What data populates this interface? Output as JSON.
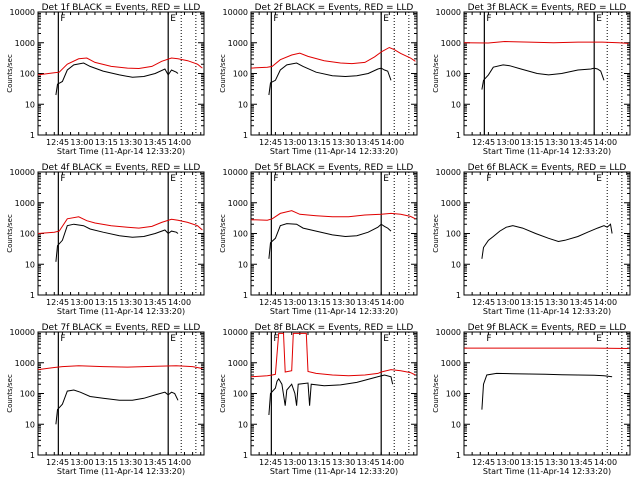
{
  "chart_data": {
    "type": "line",
    "layout": "3x3 grid",
    "xlabel": "Start Time (11-Apr-14 12:33:20)",
    "ylabel": "Counts/sec",
    "yscale": "log",
    "ylim": [
      1,
      10000
    ],
    "yticks": [
      1,
      10,
      100,
      1000,
      10000
    ],
    "ytick_labels": [
      "1",
      "10",
      "100",
      "1000",
      "10000"
    ],
    "xlim": [
      "12:33",
      "14:15"
    ],
    "xticks": [
      "12:45",
      "13:00",
      "13:15",
      "13:30",
      "13:45",
      "14:00"
    ],
    "x_unit": "minutes after 12:33:20",
    "series_colors": {
      "events": "#000000",
      "lld": "#e00000"
    },
    "panels": [
      {
        "title": "Det 1f BLACK = Events, RED = LLD",
        "start_flag": "F",
        "end_flag": "E",
        "vlines": [
          12.5,
          80
        ],
        "dotted_lines": [
          88,
          97
        ],
        "lld": [
          [
            0,
            90
          ],
          [
            10,
            105
          ],
          [
            13,
            110
          ],
          [
            18,
            200
          ],
          [
            25,
            300
          ],
          [
            30,
            320
          ],
          [
            35,
            230
          ],
          [
            45,
            170
          ],
          [
            55,
            150
          ],
          [
            62,
            145
          ],
          [
            70,
            170
          ],
          [
            76,
            250
          ],
          [
            82,
            320
          ],
          [
            86,
            300
          ],
          [
            92,
            260
          ],
          [
            98,
            200
          ],
          [
            101,
            150
          ]
        ],
        "events": [
          [
            11,
            20
          ],
          [
            12,
            45
          ],
          [
            15,
            55
          ],
          [
            18,
            130
          ],
          [
            22,
            190
          ],
          [
            28,
            220
          ],
          [
            32,
            170
          ],
          [
            40,
            120
          ],
          [
            50,
            90
          ],
          [
            58,
            75
          ],
          [
            65,
            80
          ],
          [
            72,
            100
          ],
          [
            78,
            140
          ],
          [
            80,
            90
          ],
          [
            82,
            130
          ],
          [
            85,
            110
          ],
          [
            86,
            100
          ]
        ]
      },
      {
        "title": "Det 2f BLACK = Events, RED = LLD",
        "start_flag": "F",
        "end_flag": "E",
        "vlines": [
          12.5,
          80
        ],
        "dotted_lines": [
          88,
          97
        ],
        "lld": [
          [
            0,
            150
          ],
          [
            10,
            160
          ],
          [
            13,
            170
          ],
          [
            18,
            280
          ],
          [
            25,
            400
          ],
          [
            30,
            460
          ],
          [
            35,
            360
          ],
          [
            45,
            260
          ],
          [
            55,
            220
          ],
          [
            62,
            210
          ],
          [
            70,
            230
          ],
          [
            76,
            350
          ],
          [
            80,
            500
          ],
          [
            85,
            700
          ],
          [
            88,
            600
          ],
          [
            92,
            450
          ],
          [
            98,
            320
          ],
          [
            101,
            250
          ]
        ],
        "events": [
          [
            11,
            20
          ],
          [
            12,
            50
          ],
          [
            15,
            60
          ],
          [
            18,
            130
          ],
          [
            22,
            190
          ],
          [
            28,
            220
          ],
          [
            32,
            170
          ],
          [
            40,
            110
          ],
          [
            50,
            85
          ],
          [
            58,
            80
          ],
          [
            65,
            85
          ],
          [
            72,
            100
          ],
          [
            78,
            140
          ],
          [
            80,
            150
          ],
          [
            82,
            130
          ],
          [
            84,
            120
          ],
          [
            86,
            60
          ]
        ]
      },
      {
        "title": "Det 3f BLACK = Events, RED = LLD",
        "start_flag": "F",
        "end_flag": "E",
        "vlines": [
          12.5,
          80
        ],
        "dotted_lines": [
          88,
          97
        ],
        "lld": [
          [
            0,
            1000
          ],
          [
            15,
            980
          ],
          [
            25,
            1100
          ],
          [
            40,
            1050
          ],
          [
            55,
            1000
          ],
          [
            70,
            1050
          ],
          [
            85,
            1050
          ],
          [
            95,
            1000
          ],
          [
            101,
            950
          ]
        ],
        "events": [
          [
            11,
            30
          ],
          [
            12,
            60
          ],
          [
            15,
            90
          ],
          [
            18,
            160
          ],
          [
            24,
            190
          ],
          [
            28,
            180
          ],
          [
            35,
            140
          ],
          [
            45,
            100
          ],
          [
            52,
            90
          ],
          [
            60,
            100
          ],
          [
            70,
            130
          ],
          [
            78,
            140
          ],
          [
            80,
            150
          ],
          [
            82,
            140
          ],
          [
            84,
            120
          ],
          [
            86,
            60
          ]
        ]
      },
      {
        "title": "Det 4f BLACK = Events, RED = LLD",
        "start_flag": "F",
        "end_flag": "E",
        "vlines": [
          12.5,
          80
        ],
        "dotted_lines": [
          88,
          97
        ],
        "lld": [
          [
            0,
            100
          ],
          [
            10,
            110
          ],
          [
            13,
            120
          ],
          [
            18,
            300
          ],
          [
            25,
            350
          ],
          [
            30,
            260
          ],
          [
            35,
            220
          ],
          [
            45,
            180
          ],
          [
            55,
            160
          ],
          [
            62,
            150
          ],
          [
            70,
            170
          ],
          [
            76,
            230
          ],
          [
            82,
            290
          ],
          [
            86,
            270
          ],
          [
            92,
            230
          ],
          [
            98,
            180
          ],
          [
            101,
            130
          ]
        ],
        "events": [
          [
            11,
            12
          ],
          [
            12,
            40
          ],
          [
            15,
            60
          ],
          [
            18,
            180
          ],
          [
            22,
            200
          ],
          [
            28,
            180
          ],
          [
            32,
            140
          ],
          [
            40,
            110
          ],
          [
            50,
            85
          ],
          [
            58,
            75
          ],
          [
            65,
            80
          ],
          [
            72,
            100
          ],
          [
            78,
            130
          ],
          [
            80,
            100
          ],
          [
            82,
            120
          ],
          [
            85,
            110
          ],
          [
            86,
            100
          ]
        ]
      },
      {
        "title": "Det 5f BLACK = Events, RED = LLD",
        "start_flag": "F",
        "end_flag": "E",
        "vlines": [
          12.5,
          80
        ],
        "dotted_lines": [
          88,
          97
        ],
        "lld": [
          [
            0,
            280
          ],
          [
            10,
            270
          ],
          [
            13,
            300
          ],
          [
            18,
            450
          ],
          [
            25,
            550
          ],
          [
            30,
            420
          ],
          [
            40,
            380
          ],
          [
            50,
            350
          ],
          [
            60,
            350
          ],
          [
            70,
            400
          ],
          [
            80,
            420
          ],
          [
            86,
            450
          ],
          [
            92,
            420
          ],
          [
            98,
            360
          ],
          [
            101,
            300
          ]
        ],
        "events": [
          [
            11,
            15
          ],
          [
            12,
            50
          ],
          [
            15,
            70
          ],
          [
            18,
            180
          ],
          [
            22,
            210
          ],
          [
            28,
            200
          ],
          [
            32,
            150
          ],
          [
            40,
            120
          ],
          [
            50,
            90
          ],
          [
            58,
            80
          ],
          [
            65,
            85
          ],
          [
            72,
            110
          ],
          [
            78,
            160
          ],
          [
            80,
            200
          ],
          [
            82,
            170
          ],
          [
            84,
            150
          ],
          [
            86,
            120
          ]
        ]
      },
      {
        "title": "Det 6f BLACK = Events, RED = LLD",
        "start_flag": "F",
        "end_flag": "E",
        "vlines": [],
        "dotted_lines": [
          88,
          97
        ],
        "lld": [],
        "events": [
          [
            11,
            15
          ],
          [
            12,
            35
          ],
          [
            15,
            60
          ],
          [
            18,
            80
          ],
          [
            22,
            120
          ],
          [
            26,
            160
          ],
          [
            30,
            180
          ],
          [
            36,
            150
          ],
          [
            44,
            100
          ],
          [
            52,
            70
          ],
          [
            58,
            55
          ],
          [
            62,
            60
          ],
          [
            70,
            80
          ],
          [
            76,
            110
          ],
          [
            82,
            150
          ],
          [
            86,
            180
          ],
          [
            88,
            160
          ],
          [
            90,
            200
          ],
          [
            91,
            100
          ]
        ]
      },
      {
        "title": "Det 7f BLACK = Events, RED = LLD",
        "start_flag": "F",
        "end_flag": "E",
        "vlines": [
          12.5,
          80
        ],
        "dotted_lines": [
          88,
          97
        ],
        "lld": [
          [
            0,
            600
          ],
          [
            10,
            700
          ],
          [
            15,
            750
          ],
          [
            25,
            800
          ],
          [
            40,
            750
          ],
          [
            55,
            720
          ],
          [
            70,
            760
          ],
          [
            85,
            800
          ],
          [
            95,
            750
          ],
          [
            101,
            650
          ]
        ],
        "events": [
          [
            11,
            10
          ],
          [
            12,
            30
          ],
          [
            15,
            45
          ],
          [
            18,
            120
          ],
          [
            22,
            130
          ],
          [
            26,
            110
          ],
          [
            32,
            80
          ],
          [
            40,
            70
          ],
          [
            50,
            60
          ],
          [
            58,
            60
          ],
          [
            65,
            70
          ],
          [
            72,
            90
          ],
          [
            78,
            110
          ],
          [
            80,
            90
          ],
          [
            82,
            110
          ],
          [
            84,
            100
          ],
          [
            86,
            60
          ]
        ]
      },
      {
        "title": "Det 8f BLACK = Events, RED = LLD",
        "start_flag": "F",
        "end_flag": "E",
        "vlines": [
          12.5,
          80
        ],
        "dotted_lines": [
          88,
          97
        ],
        "lld": [
          [
            0,
            350
          ],
          [
            10,
            380
          ],
          [
            13,
            400
          ],
          [
            15,
            420
          ],
          [
            17,
            9000
          ],
          [
            20,
            9000
          ],
          [
            21,
            500
          ],
          [
            25,
            550
          ],
          [
            26,
            9000
          ],
          [
            34,
            9000
          ],
          [
            35,
            520
          ],
          [
            40,
            450
          ],
          [
            50,
            400
          ],
          [
            60,
            380
          ],
          [
            70,
            400
          ],
          [
            78,
            450
          ],
          [
            80,
            500
          ],
          [
            86,
            600
          ],
          [
            92,
            550
          ],
          [
            98,
            480
          ],
          [
            101,
            400
          ]
        ],
        "events": [
          [
            11,
            20
          ],
          [
            12,
            100
          ],
          [
            15,
            150
          ],
          [
            16,
            250
          ],
          [
            17,
            300
          ],
          [
            19,
            200
          ],
          [
            21,
            40
          ],
          [
            22,
            130
          ],
          [
            25,
            200
          ],
          [
            27,
            100
          ],
          [
            28,
            40
          ],
          [
            29,
            200
          ],
          [
            35,
            220
          ],
          [
            36,
            40
          ],
          [
            37,
            200
          ],
          [
            45,
            180
          ],
          [
            55,
            190
          ],
          [
            65,
            230
          ],
          [
            75,
            320
          ],
          [
            82,
            400
          ],
          [
            86,
            350
          ],
          [
            87,
            200
          ]
        ]
      },
      {
        "title": "Det 9f BLACK = Events, RED = LLD",
        "start_flag": "F",
        "end_flag": "E",
        "vlines": [],
        "dotted_lines": [
          88,
          97
        ],
        "lld": [
          [
            0,
            3000
          ],
          [
            20,
            3000
          ],
          [
            40,
            3000
          ],
          [
            60,
            3000
          ],
          [
            80,
            3000
          ],
          [
            101,
            2900
          ]
        ],
        "events": [
          [
            11,
            30
          ],
          [
            12,
            200
          ],
          [
            14,
            400
          ],
          [
            20,
            450
          ],
          [
            30,
            440
          ],
          [
            40,
            430
          ],
          [
            50,
            420
          ],
          [
            60,
            410
          ],
          [
            70,
            400
          ],
          [
            80,
            390
          ],
          [
            86,
            380
          ],
          [
            91,
            350
          ]
        ]
      }
    ]
  }
}
